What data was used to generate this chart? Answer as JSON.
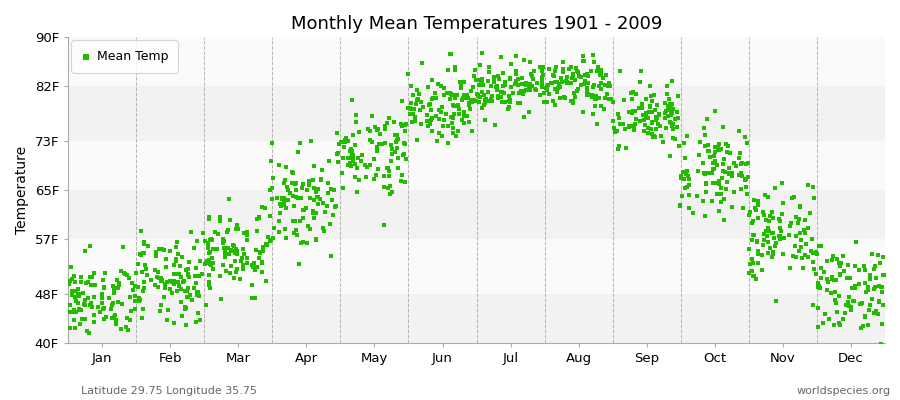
{
  "title": "Monthly Mean Temperatures 1901 - 2009",
  "ylabel": "Temperature",
  "xlabel_labels": [
    "Jan",
    "Feb",
    "Mar",
    "Apr",
    "May",
    "Jun",
    "Jul",
    "Aug",
    "Sep",
    "Oct",
    "Nov",
    "Dec"
  ],
  "ytick_labels": [
    "40F",
    "48F",
    "57F",
    "65F",
    "73F",
    "82F",
    "90F"
  ],
  "ytick_values": [
    40,
    48,
    57,
    65,
    73,
    82,
    90
  ],
  "ylim": [
    40,
    90
  ],
  "dot_color": "#22bb00",
  "dot_size": 5,
  "legend_label": "Mean Temp",
  "figure_bg_color": "#ffffff",
  "plot_bg_color": "#ffffff",
  "stripe_colors": [
    "#f2f2f2",
    "#fafafa"
  ],
  "vgrid_color": "#888888",
  "subtitle": "Latitude 29.75 Longitude 35.75",
  "watermark": "worldspecies.org",
  "n_years": 109,
  "monthly_means_F": [
    47.0,
    50.0,
    55.0,
    63.0,
    71.5,
    79.0,
    82.0,
    82.0,
    77.0,
    68.5,
    57.5,
    49.0
  ],
  "monthly_std_F": [
    3.2,
    3.5,
    3.5,
    3.8,
    3.5,
    2.8,
    2.2,
    2.2,
    2.8,
    3.5,
    4.0,
    3.8
  ]
}
